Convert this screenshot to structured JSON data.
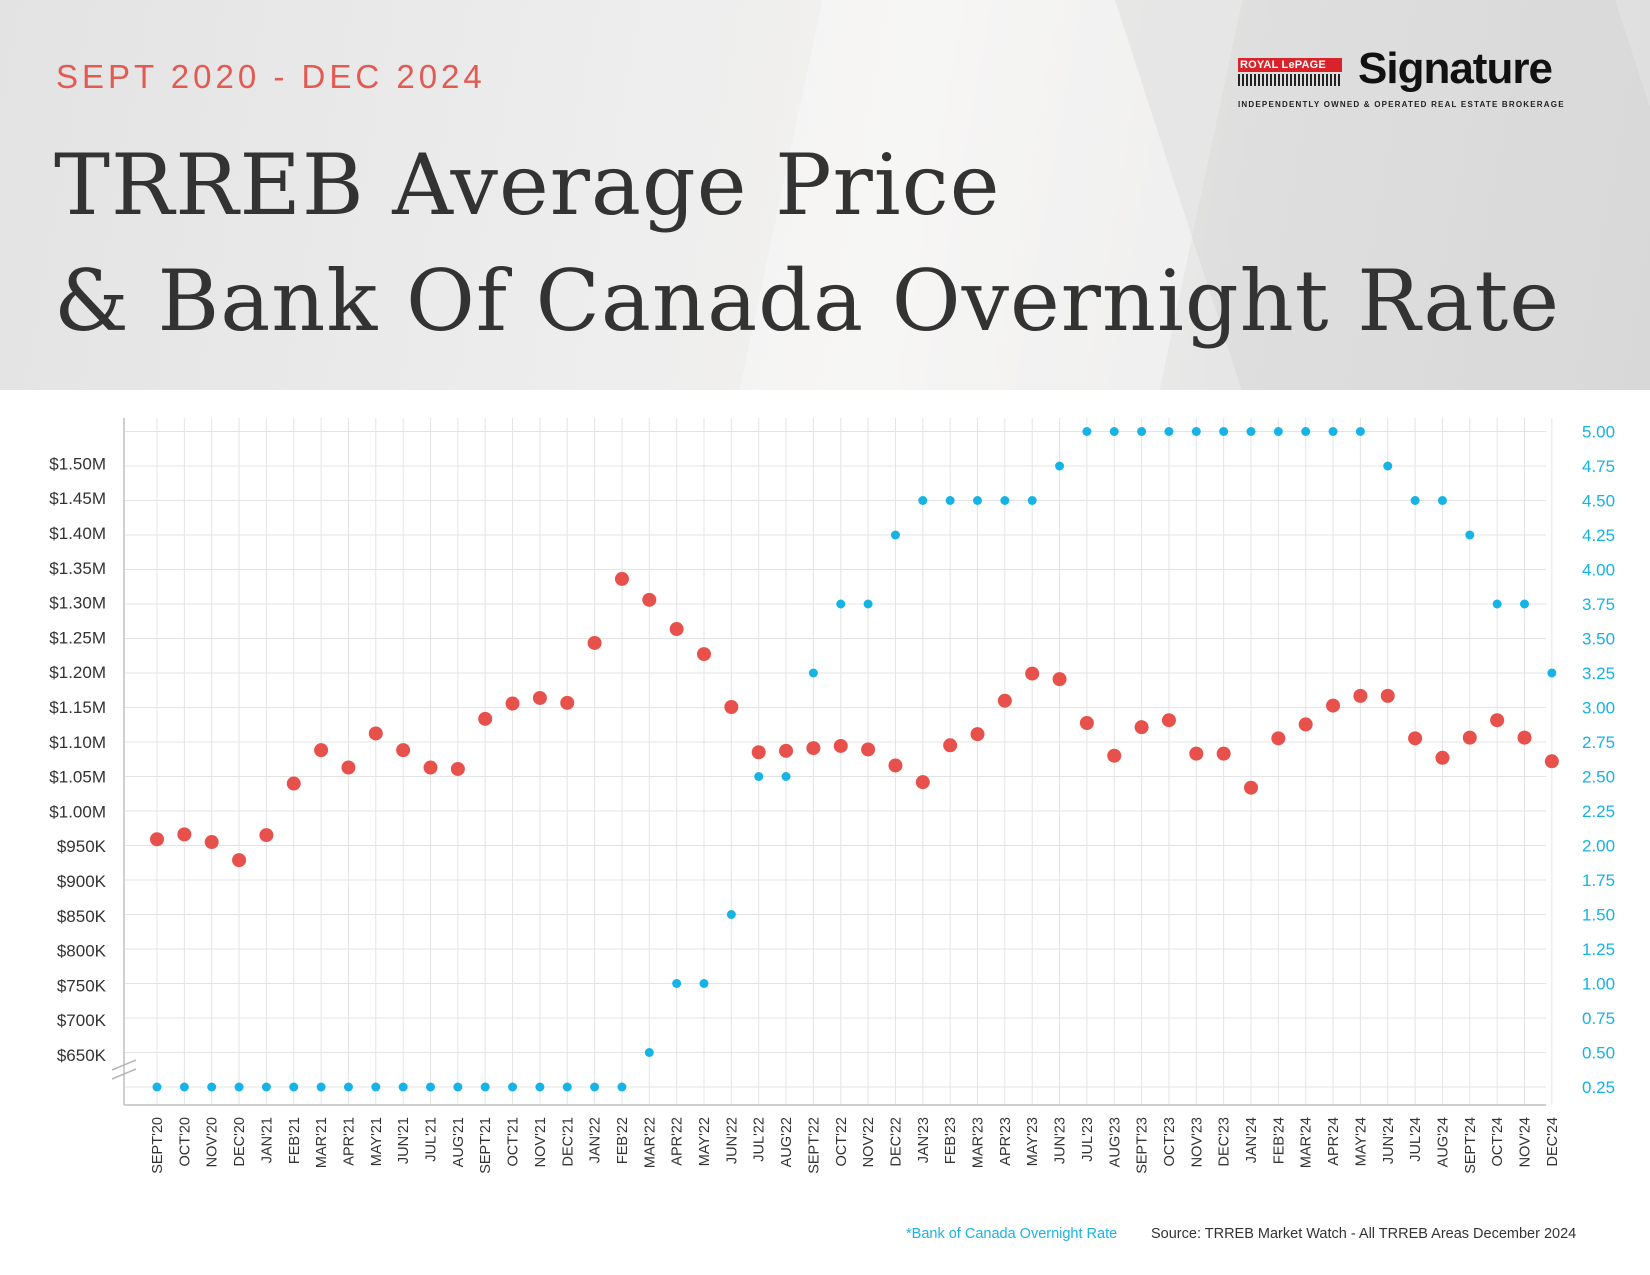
{
  "header": {
    "date_range": "SEPT 2020 - DEC 2024",
    "title_line1": "TRREB Average Price",
    "title_line2": "& Bank Of Canada Overnight Rate"
  },
  "logo": {
    "brand": "ROYAL LePAGE",
    "name": "Signature",
    "tagline": "INDEPENDENTLY OWNED & OPERATED REAL ESTATE BROKERAGE"
  },
  "footer": {
    "rate_note": "*Bank of Canada Overnight Rate",
    "source": "Source: TRREB Market Watch - All TRREB Areas December 2024"
  },
  "colors": {
    "price": "#e8504c",
    "rate": "#15b3e6",
    "grid": "#e4e4e4",
    "axis": "#cfcfcf",
    "text": "#333333"
  },
  "chart_data": {
    "type": "scatter",
    "categories": [
      "SEPT'20",
      "OCT'20",
      "NOV'20",
      "DEC'20",
      "JAN'21",
      "FEB'21",
      "MAR'21",
      "APR'21",
      "MAY'21",
      "JUN'21",
      "JUL'21",
      "AUG'21",
      "SEPT'21",
      "OCT'21",
      "NOV'21",
      "DEC'21",
      "JAN'22",
      "FEB'22",
      "MAR'22",
      "APR'22",
      "MAY'22",
      "JUN'22",
      "JUL'22",
      "AUG'22",
      "SEPT'22",
      "OCT'22",
      "NOV'22",
      "DEC'22",
      "JAN'23",
      "FEB'23",
      "MAR'23",
      "APR'23",
      "MAY'23",
      "JUN'23",
      "JUL'23",
      "AUG'23",
      "SEPT'23",
      "OCT'23",
      "NOV'23",
      "DEC'23",
      "JAN'24",
      "FEB'24",
      "MAR'24",
      "APR'24",
      "MAY'24",
      "JUN'24",
      "JUL'24",
      "AUG'24",
      "SEPT'24",
      "OCT'24",
      "NOV'24",
      "DEC'24"
    ],
    "left_axis": {
      "tick_values": [
        650000,
        700000,
        750000,
        800000,
        850000,
        900000,
        950000,
        1000000,
        1050000,
        1100000,
        1150000,
        1200000,
        1250000,
        1300000,
        1350000,
        1400000,
        1450000,
        1500000
      ],
      "tick_labels": [
        "$650K",
        "$700K",
        "$750K",
        "$800K",
        "$850K",
        "$900K",
        "$950K",
        "$1.00M",
        "$1.05M",
        "$1.10M",
        "$1.15M",
        "$1.20M",
        "$1.25M",
        "$1.30M",
        "$1.35M",
        "$1.40M",
        "$1.45M",
        "$1.50M"
      ],
      "axis_break": true
    },
    "right_axis": {
      "tick_values": [
        0.25,
        0.5,
        0.75,
        1.0,
        1.25,
        1.5,
        1.75,
        2.0,
        2.25,
        2.5,
        2.75,
        3.0,
        3.25,
        3.5,
        3.75,
        4.0,
        4.25,
        4.5,
        4.75,
        5.0
      ],
      "tick_labels": [
        "0.25",
        "0.50",
        "0.75",
        "1.00",
        "1.25",
        "1.50",
        "1.75",
        "2.00",
        "2.25",
        "2.50",
        "2.75",
        "3.00",
        "3.25",
        "3.50",
        "3.75",
        "4.00",
        "4.25",
        "4.50",
        "4.75",
        "5.00"
      ]
    },
    "series": [
      {
        "axis": "left",
        "values": [
          960000,
          967000,
          956000,
          930000,
          966000,
          1040000,
          1088000,
          1063000,
          1112000,
          1088000,
          1063000,
          1061000,
          1133000,
          1155000,
          1163000,
          1156000,
          1242000,
          1334000,
          1304000,
          1262000,
          1226000,
          1150000,
          1085000,
          1087000,
          1091000,
          1094000,
          1089000,
          1066000,
          1042000,
          1095000,
          1111000,
          1159000,
          1198000,
          1190000,
          1127000,
          1080000,
          1121000,
          1131000,
          1083000,
          1083000,
          1034000,
          1105000,
          1125000,
          1152000,
          1166000,
          1166000,
          1105000,
          1077000,
          1106000,
          1131000,
          1106000,
          1072000
        ]
      },
      {
        "name": "*Bank of Canada Overnight Rate",
        "axis": "right",
        "values": [
          0.25,
          0.25,
          0.25,
          0.25,
          0.25,
          0.25,
          0.25,
          0.25,
          0.25,
          0.25,
          0.25,
          0.25,
          0.25,
          0.25,
          0.25,
          0.25,
          0.25,
          0.25,
          0.5,
          1.0,
          1.0,
          1.5,
          2.5,
          2.5,
          3.25,
          3.75,
          3.75,
          4.25,
          4.5,
          4.5,
          4.5,
          4.5,
          4.5,
          4.75,
          5.0,
          5.0,
          5.0,
          5.0,
          5.0,
          5.0,
          5.0,
          5.0,
          5.0,
          5.0,
          5.0,
          4.75,
          4.5,
          4.5,
          4.25,
          3.75,
          3.75,
          3.25
        ]
      }
    ],
    "grid": true
  }
}
